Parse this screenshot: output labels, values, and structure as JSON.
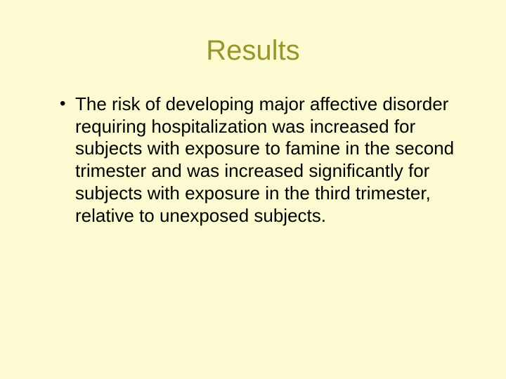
{
  "slide": {
    "title": "Results",
    "title_color": "#96962d",
    "body_color": "#000000",
    "background_color": "#fcfad0",
    "title_fontsize": 40,
    "body_fontsize": 26,
    "bullets": [
      {
        "text": "The risk of developing major affective disorder requiring hospitalization was increased for subjects with exposure to famine in the second trimester and was increased significantly for subjects with exposure in the third trimester, relative to unexposed subjects."
      }
    ]
  }
}
